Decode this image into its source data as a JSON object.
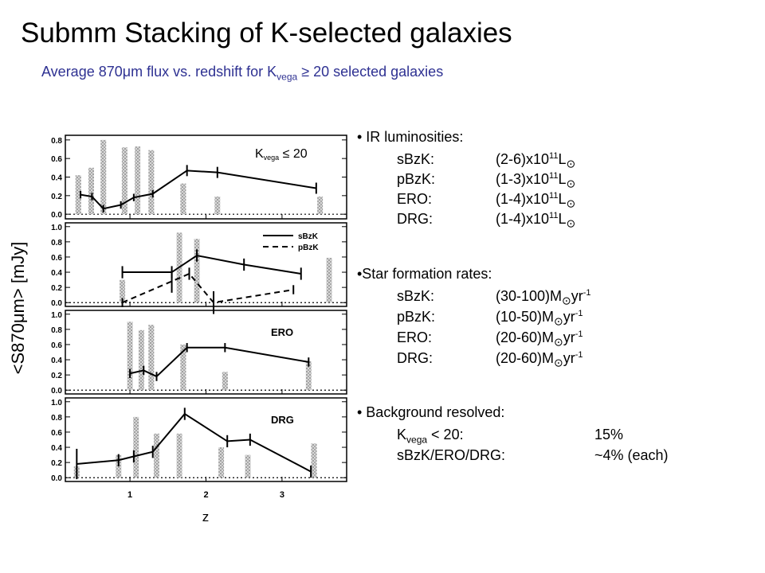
{
  "title": "Submm Stacking of K-selected galaxies",
  "subtitle": {
    "pre": "Average 870μm flux vs. redshift for K",
    "sub": "vega",
    "post": " ≥ 20 selected galaxies"
  },
  "chart_data": {
    "type": "line",
    "xlabel": "z",
    "ylabel": "<S870μm> [mJy]",
    "x_ticks": [
      1,
      2,
      3
    ],
    "xlim": [
      0.15,
      3.85
    ],
    "panels": [
      {
        "name": "K_vega ≤ 20",
        "label": "K",
        "label_sub": "vega",
        "label_post": " ≤ 20",
        "ylim": [
          -0.05,
          0.85
        ],
        "y_ticks": [
          "0.0",
          "0.2",
          "0.4",
          "0.6",
          "0.8"
        ],
        "y_tick_values": [
          0.0,
          0.2,
          0.4,
          0.6,
          0.8
        ],
        "bars": [
          [
            0.32,
            0.42
          ],
          [
            0.49,
            0.5
          ],
          [
            0.65,
            0.8
          ],
          [
            0.93,
            0.72
          ],
          [
            1.1,
            0.73
          ],
          [
            1.28,
            0.69
          ],
          [
            1.7,
            0.33
          ],
          [
            2.15,
            0.19
          ],
          [
            3.5,
            0.19
          ]
        ],
        "series": [
          {
            "name": "",
            "dash": false,
            "points": [
              [
                0.35,
                0.21
              ],
              [
                0.5,
                0.19
              ],
              [
                0.65,
                0.06
              ],
              [
                0.88,
                0.1
              ],
              [
                1.05,
                0.18
              ],
              [
                1.3,
                0.22
              ],
              [
                1.75,
                0.47
              ],
              [
                2.15,
                0.45
              ],
              [
                3.45,
                0.28
              ]
            ],
            "err": [
              0.04,
              0.04,
              0.04,
              0.04,
              0.04,
              0.04,
              0.06,
              0.06,
              0.06
            ]
          }
        ]
      },
      {
        "name": "sBzK/pBzK",
        "legend": [
          "sBzK",
          "pBzK"
        ],
        "ylim": [
          -0.05,
          1.05
        ],
        "y_ticks": [
          "0.0",
          "0.2",
          "0.4",
          "0.6",
          "0.8",
          "1.0"
        ],
        "y_tick_values": [
          0.0,
          0.2,
          0.4,
          0.6,
          0.8,
          1.0
        ],
        "bars": [
          [
            0.9,
            0.3
          ],
          [
            1.65,
            0.92
          ],
          [
            1.88,
            0.84
          ],
          [
            3.62,
            0.59
          ]
        ],
        "series": [
          {
            "name": "sBzK",
            "dash": false,
            "points": [
              [
                0.9,
                0.4
              ],
              [
                1.55,
                0.4
              ],
              [
                1.88,
                0.62
              ],
              [
                2.5,
                0.5
              ],
              [
                3.25,
                0.38
              ]
            ],
            "err": [
              0.08,
              0.08,
              0.08,
              0.08,
              0.08
            ]
          },
          {
            "name": "pBzK",
            "dash": true,
            "points": [
              [
                0.9,
                0.0
              ],
              [
                1.55,
                0.28
              ],
              [
                1.78,
                0.38
              ],
              [
                2.1,
                0.0
              ],
              [
                3.15,
                0.17
              ]
            ],
            "err": [
              0.06,
              0.15,
              0.08,
              0.15,
              0.06
            ]
          }
        ]
      },
      {
        "name": "ERO",
        "label": "ERO",
        "ylim": [
          -0.05,
          1.05
        ],
        "y_ticks": [
          "0.0",
          "0.2",
          "0.4",
          "0.6",
          "0.8",
          "1.0"
        ],
        "y_tick_values": [
          0.0,
          0.2,
          0.4,
          0.6,
          0.8,
          1.0
        ],
        "bars": [
          [
            1.0,
            0.9
          ],
          [
            1.15,
            0.79
          ],
          [
            1.28,
            0.86
          ],
          [
            1.7,
            0.6
          ],
          [
            2.25,
            0.24
          ],
          [
            3.35,
            0.38
          ]
        ],
        "series": [
          {
            "name": "",
            "dash": false,
            "points": [
              [
                1.0,
                0.22
              ],
              [
                1.18,
                0.26
              ],
              [
                1.35,
                0.18
              ],
              [
                1.75,
                0.56
              ],
              [
                2.25,
                0.56
              ],
              [
                3.35,
                0.37
              ]
            ],
            "err": [
              0.06,
              0.06,
              0.06,
              0.06,
              0.06,
              0.06
            ]
          }
        ]
      },
      {
        "name": "DRG",
        "label": "DRG",
        "ylim": [
          -0.05,
          1.05
        ],
        "y_ticks": [
          "0.0",
          "0.2",
          "0.4",
          "0.6",
          "0.8",
          "1.0"
        ],
        "y_tick_values": [
          0.0,
          0.2,
          0.4,
          0.6,
          0.8,
          1.0
        ],
        "bars": [
          [
            0.3,
            0.15
          ],
          [
            0.85,
            0.3
          ],
          [
            1.08,
            0.8
          ],
          [
            1.35,
            0.58
          ],
          [
            1.65,
            0.58
          ],
          [
            2.2,
            0.4
          ],
          [
            2.55,
            0.3
          ],
          [
            3.42,
            0.45
          ]
        ],
        "series": [
          {
            "name": "",
            "dash": false,
            "points": [
              [
                0.3,
                0.18
              ],
              [
                0.85,
                0.23
              ],
              [
                1.05,
                0.28
              ],
              [
                1.3,
                0.34
              ],
              [
                1.72,
                0.84
              ],
              [
                2.28,
                0.48
              ],
              [
                2.58,
                0.5
              ],
              [
                3.38,
                0.08
              ]
            ],
            "err": [
              0.2,
              0.08,
              0.08,
              0.08,
              0.08,
              0.08,
              0.08,
              0.08
            ]
          }
        ]
      }
    ]
  },
  "bullets": {
    "ir": {
      "heading": "• IR luminosities:",
      "rows": [
        {
          "k": "sBzK:",
          "v": "(2-6)x10",
          "e": "11",
          "u": "L"
        },
        {
          "k": "pBzK:",
          "v": "(1-3)x10",
          "e": "11",
          "u": "L"
        },
        {
          "k": "ERO:",
          "v": "(1-4)x10",
          "e": "11",
          "u": "L"
        },
        {
          "k": "DRG:",
          "v": "(1-4)x10",
          "e": "11",
          "u": "L"
        }
      ]
    },
    "sfr": {
      "heading": "•Star formation rates:",
      "rows": [
        {
          "k": "sBzK:",
          "v": "(30-100)M",
          "e": "-1",
          "u": "yr"
        },
        {
          "k": "pBzK:",
          "v": "(10-50)M",
          "e": "-1",
          "u": "yr"
        },
        {
          "k": "ERO:",
          "v": "(20-60)M",
          "e": "-1",
          "u": "yr"
        },
        {
          "k": "DRG:",
          "v": "(20-60)M",
          "e": "-1",
          "u": "yr"
        }
      ]
    },
    "bg": {
      "heading": "• Background resolved:",
      "rows": [
        {
          "k": "K",
          "ksub": "vega",
          "kpost": " < 20:",
          "v": "15%"
        },
        {
          "k": "sBzK/ERO/DRG:",
          "v": "~4% (each)"
        }
      ]
    },
    "sun_symbol": "⊙"
  }
}
